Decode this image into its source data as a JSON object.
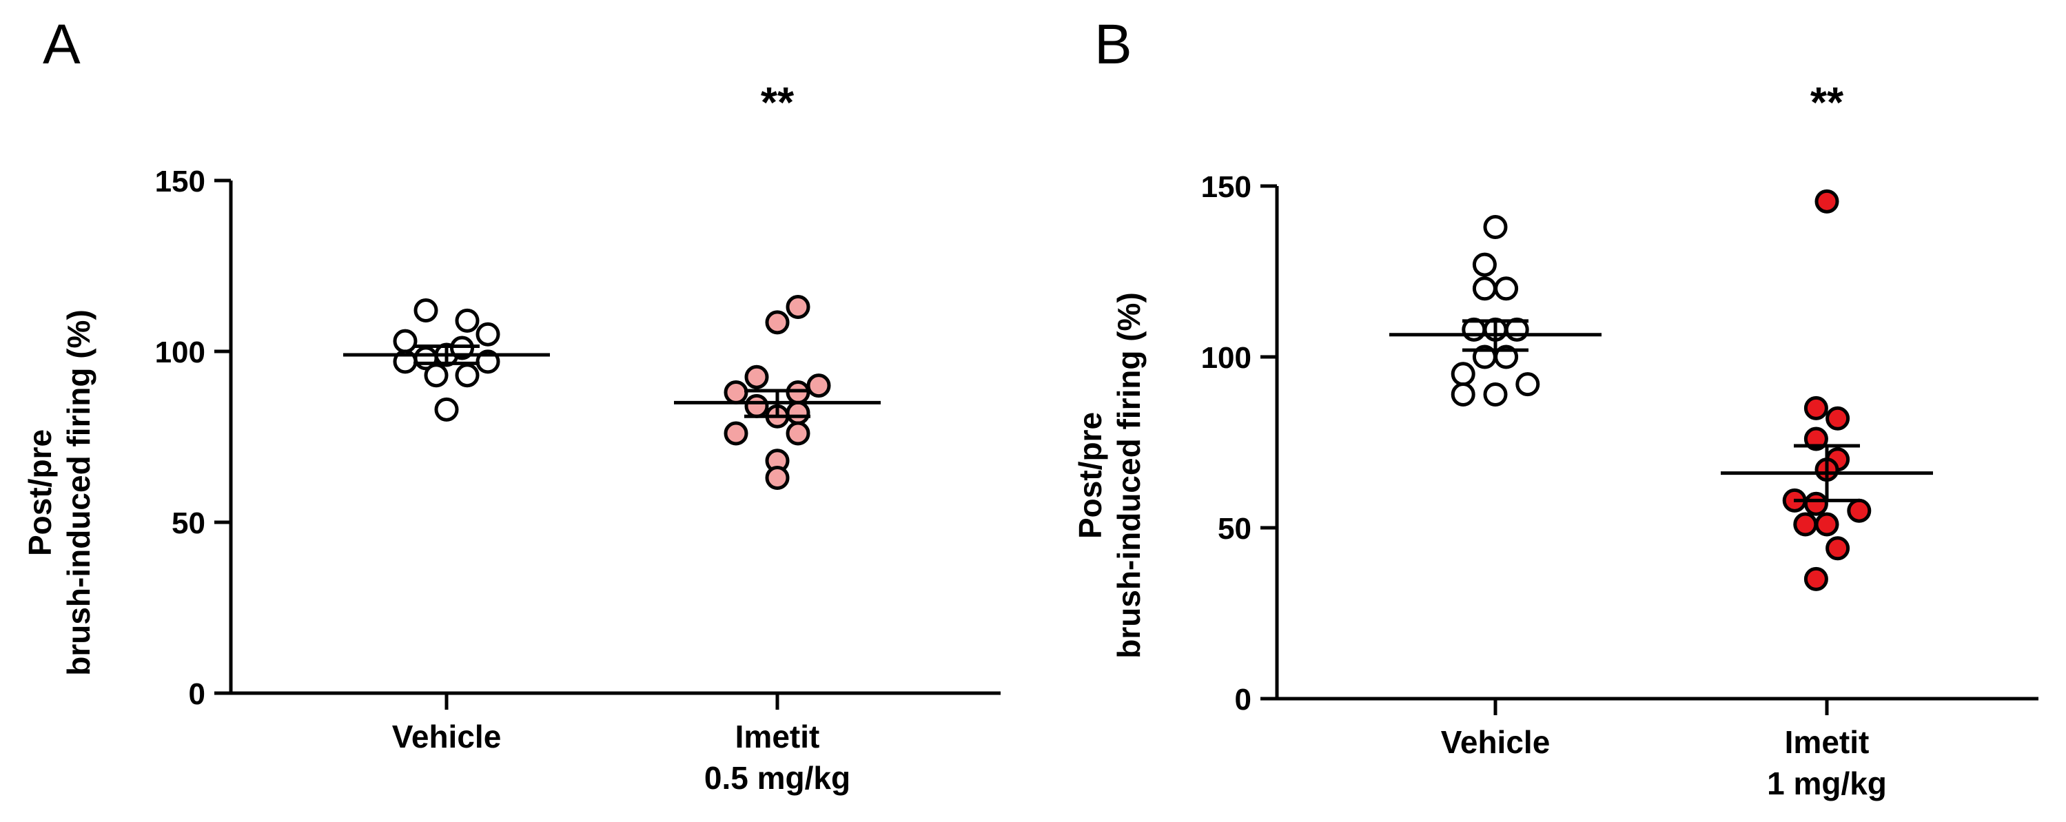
{
  "figure": {
    "panels": [
      {
        "letter": "A",
        "significance": "**",
        "ylabel_line1": "Post/pre",
        "ylabel_line2": "brush-induced firing (%)",
        "groups": [
          {
            "label_line1": "Vehicle",
            "label_line2": ""
          },
          {
            "label_line1": "Imetit",
            "label_line2": "0.5 mg/kg"
          }
        ]
      },
      {
        "letter": "B",
        "significance": "**",
        "ylabel_line1": "Post/pre",
        "ylabel_line2": "brush-induced firing (%)",
        "groups": [
          {
            "label_line1": "Vehicle",
            "label_line2": ""
          },
          {
            "label_line1": "Imetit",
            "label_line2": "1 mg/kg"
          }
        ]
      }
    ]
  },
  "chart_data": [
    {
      "type": "scatter",
      "panel": "A",
      "title": "",
      "xlabel": "",
      "ylabel": "Post/pre brush-induced firing (%)",
      "ylim": [
        0,
        150
      ],
      "yticks": [
        0,
        50,
        100,
        150
      ],
      "categories": [
        "Vehicle",
        "Imetit 0.5 mg/kg"
      ],
      "significance": "**",
      "series": [
        {
          "name": "Vehicle",
          "fill": "#ffffff",
          "values": [
            112,
            109,
            103,
            105,
            97,
            98,
            99,
            101,
            97,
            93,
            93,
            83
          ],
          "jitter": [
            -1.2,
            1.2,
            -2.4,
            2.4,
            -2.4,
            -1.2,
            0.0,
            0.9,
            2.4,
            -0.6,
            1.2,
            0.0
          ],
          "mean": 99,
          "sem_low": 96.5,
          "sem_high": 101.5
        },
        {
          "name": "Imetit 0.5 mg/kg",
          "fill": "#f4a3a3",
          "values": [
            113,
            108.5,
            92.5,
            90,
            88,
            88,
            84,
            82,
            81,
            76,
            76,
            68,
            63
          ],
          "jitter": [
            1.2,
            0.0,
            -1.2,
            2.4,
            -2.4,
            1.2,
            -1.2,
            1.2,
            0.0,
            -2.4,
            1.2,
            0.0,
            0.0
          ],
          "mean": 85,
          "sem_low": 81,
          "sem_high": 88.5
        }
      ]
    },
    {
      "type": "scatter",
      "panel": "B",
      "title": "",
      "xlabel": "",
      "ylabel": "Post/pre brush-induced firing (%)",
      "ylim": [
        0,
        150
      ],
      "yticks": [
        0,
        50,
        100,
        150
      ],
      "categories": [
        "Vehicle",
        "Imetit 1 mg/kg"
      ],
      "significance": "**",
      "series": [
        {
          "name": "Vehicle",
          "fill": "#ffffff",
          "values": [
            138,
            127,
            120,
            120,
            108,
            108,
            108,
            100,
            100,
            95,
            92,
            89,
            89
          ],
          "jitter": [
            0.0,
            -0.6,
            -0.6,
            0.6,
            -1.2,
            0.0,
            1.2,
            -0.6,
            0.6,
            -1.8,
            1.8,
            -1.8,
            0.0
          ],
          "mean": 106.5,
          "sem_low": 102,
          "sem_high": 110.5
        },
        {
          "name": "Imetit 1 mg/kg",
          "fill": "#e8191f",
          "values": [
            145.5,
            85,
            82,
            76,
            70,
            67,
            58,
            57,
            55,
            51,
            51,
            44,
            35
          ],
          "jitter": [
            0.0,
            -0.6,
            0.6,
            -0.6,
            0.6,
            0.0,
            -1.8,
            -0.6,
            1.8,
            -1.2,
            0.0,
            0.6,
            -0.6
          ],
          "mean": 66,
          "sem_low": 58,
          "sem_high": 74
        }
      ]
    }
  ]
}
